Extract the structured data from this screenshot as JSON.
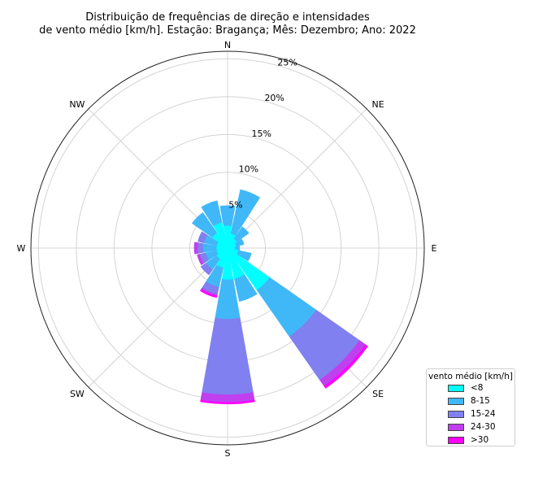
{
  "chart_data": {
    "type": "windrose",
    "title_line1": "Distribuição de frequências de direção e intensidades",
    "title_line2": "de vento médio [km/h]. Estação: Bragança; Mês: Dezembro; Ano: 2022",
    "direction_labels": [
      "N",
      "NE",
      "E",
      "SE",
      "S",
      "SW",
      "W",
      "NW"
    ],
    "radial_ticks": [
      5,
      10,
      15,
      20,
      25
    ],
    "radial_tick_labels": [
      "5%",
      "10%",
      "15%",
      "20%",
      "25%"
    ],
    "rmax": 26,
    "legend_title": "vento médio [km/h]",
    "bins": [
      "<8",
      "8-15",
      "15-24",
      "24-30",
      ">30"
    ],
    "colors": [
      "#00ffff",
      "#40b8f8",
      "#8080f0",
      "#c040f0",
      "#ff00ff"
    ],
    "sectors": [
      {
        "dir": "N",
        "values": [
          3.0,
          2.6,
          0,
          0,
          0
        ]
      },
      {
        "dir": "NNE",
        "values": [
          2.0,
          5.9,
          0,
          0,
          0
        ]
      },
      {
        "dir": "NE",
        "values": [
          1.5,
          1.9,
          0,
          0,
          0
        ]
      },
      {
        "dir": "ENE",
        "values": [
          1.2,
          1.0,
          0,
          0,
          0
        ]
      },
      {
        "dir": "E",
        "values": [
          1.0,
          0.6,
          0,
          0,
          0
        ]
      },
      {
        "dir": "ESE",
        "values": [
          1.5,
          1.7,
          0,
          0,
          0
        ]
      },
      {
        "dir": "SE",
        "values": [
          6.8,
          7.5,
          7.0,
          1.0,
          0.3
        ]
      },
      {
        "dir": "SSE",
        "values": [
          4.2,
          3.0,
          0,
          0,
          0
        ]
      },
      {
        "dir": "S",
        "values": [
          4.2,
          5.2,
          10.0,
          1.0,
          0.2
        ]
      },
      {
        "dir": "SSW",
        "values": [
          2.7,
          2.6,
          1.0,
          0.2,
          0.2
        ]
      },
      {
        "dir": "SW",
        "values": [
          1.8,
          1.7,
          0.8,
          0,
          0
        ]
      },
      {
        "dir": "WSW",
        "values": [
          1.5,
          1.5,
          0.8,
          0.3,
          0
        ]
      },
      {
        "dir": "W",
        "values": [
          1.5,
          1.8,
          0.7,
          0.4,
          0
        ]
      },
      {
        "dir": "WNW",
        "values": [
          1.5,
          1.7,
          0.8,
          0,
          0
        ]
      },
      {
        "dir": "NW",
        "values": [
          2.5,
          3.2,
          0,
          0,
          0
        ]
      },
      {
        "dir": "NNW",
        "values": [
          3.5,
          2.9,
          0,
          0,
          0
        ]
      }
    ]
  }
}
